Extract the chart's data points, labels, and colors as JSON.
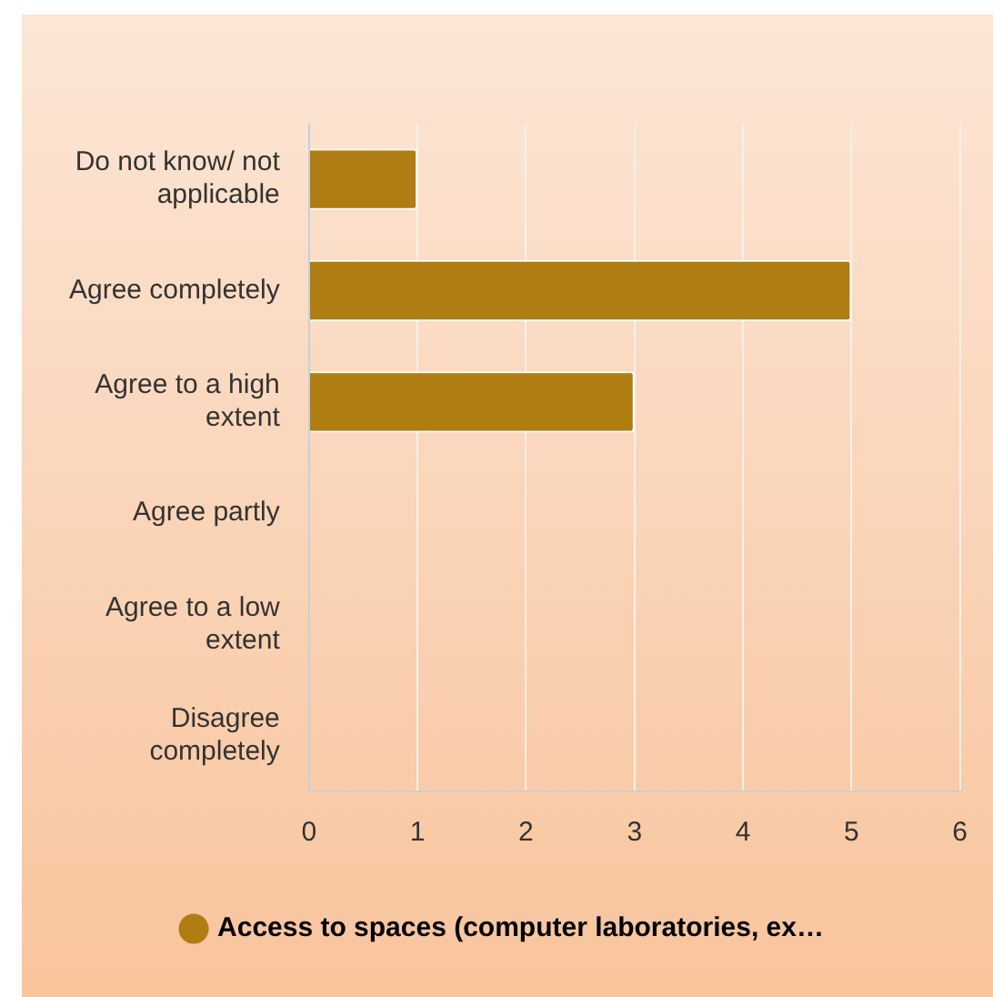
{
  "chart_data": {
    "type": "bar",
    "orientation": "horizontal",
    "categories": [
      "Do not know/ not applicable",
      "Agree completely",
      "Agree to a high extent",
      "Agree partly",
      "Agree to a low extent",
      "Disagree completely"
    ],
    "series": [
      {
        "name": "Access to spaces (computer laboratories, ex…",
        "color": "#b07d12",
        "values": [
          1,
          5,
          3,
          0,
          0,
          0
        ]
      }
    ],
    "xlim": [
      0,
      6
    ],
    "xticks": [
      0,
      1,
      2,
      3,
      4,
      5,
      6
    ],
    "grid": "x",
    "legend": "bottom"
  }
}
